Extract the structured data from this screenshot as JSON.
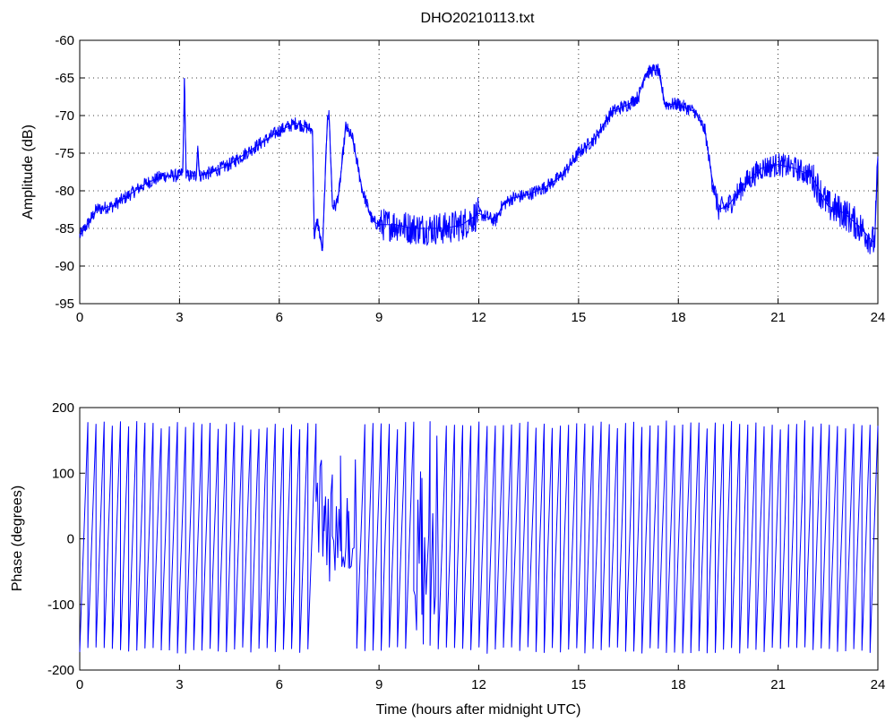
{
  "title": "DHO20210113.txt",
  "chart_data": [
    {
      "type": "line",
      "title": "DHO20210113.txt",
      "xlabel": "",
      "ylabel": "Amplitude (dB)",
      "xlim": [
        0,
        24
      ],
      "ylim": [
        -95,
        -60
      ],
      "xticks": [
        0,
        3,
        6,
        9,
        12,
        15,
        18,
        21,
        24
      ],
      "yticks": [
        -95,
        -90,
        -85,
        -80,
        -75,
        -70,
        -65,
        -60
      ],
      "grid": true,
      "color": "#0000ff",
      "series": [
        {
          "x": [
            0,
            0.3,
            0.5,
            1,
            1.5,
            2,
            2.5,
            3,
            3.1,
            3.15,
            3.2,
            3.5,
            3.55,
            3.6,
            4,
            4.5,
            5,
            5.5,
            6,
            6.5,
            6.8,
            7.0,
            7.05,
            7.15,
            7.3,
            7.45,
            7.5,
            7.6,
            7.7,
            7.8,
            8.0,
            8.2,
            8.5,
            8.8,
            9.0,
            9.5,
            10,
            10.5,
            11,
            11.5,
            12,
            12.5,
            12.7,
            13,
            13.5,
            14,
            14.5,
            15,
            15.5,
            16,
            16.5,
            16.8,
            17,
            17.2,
            17.4,
            17.6,
            18,
            18.5,
            18.8,
            19.0,
            19.2,
            19.5,
            20,
            20.5,
            21,
            21.5,
            22,
            22.5,
            23,
            23.5,
            23.9,
            24
          ],
          "values": [
            -86,
            -84,
            -82.5,
            -82,
            -80.5,
            -79,
            -78,
            -78,
            -77.5,
            -65,
            -78,
            -78,
            -74,
            -78,
            -77.5,
            -76.5,
            -75,
            -73.5,
            -72,
            -71,
            -71.5,
            -72,
            -86,
            -84,
            -88,
            -70,
            -70,
            -82,
            -82,
            -80,
            -71.5,
            -73,
            -80,
            -84,
            -84.5,
            -84.5,
            -85,
            -85,
            -85,
            -84.5,
            -83,
            -84,
            -82,
            -81,
            -80.5,
            -79.5,
            -78,
            -75,
            -73,
            -69.5,
            -68.5,
            -67.5,
            -64.5,
            -64,
            -64,
            -68.5,
            -68.5,
            -69.5,
            -72,
            -78,
            -82.5,
            -82,
            -79,
            -77,
            -76.5,
            -77,
            -78,
            -82,
            -83,
            -85,
            -87,
            -76
          ]
        }
      ]
    },
    {
      "type": "line",
      "title": "",
      "xlabel": "Time (hours after midnight UTC)",
      "ylabel": "Phase (degrees)",
      "xlim": [
        0,
        24
      ],
      "ylim": [
        -200,
        200
      ],
      "xticks": [
        0,
        3,
        6,
        9,
        12,
        15,
        18,
        21,
        24
      ],
      "yticks": [
        -200,
        -100,
        0,
        100,
        200
      ],
      "grid": false,
      "color": "#0000ff",
      "series": [
        {
          "description": "phase wraps between -180 and 180 roughly every 0.25 hours",
          "x": [
            0,
            7.0,
            7.2,
            7.5,
            7.7,
            8.0,
            9.5,
            9.8,
            10.3,
            10.6,
            24
          ],
          "values": [
            -180,
            180,
            -30,
            -60,
            20,
            150,
            -180,
            180,
            -180,
            180,
            180
          ]
        }
      ]
    }
  ]
}
